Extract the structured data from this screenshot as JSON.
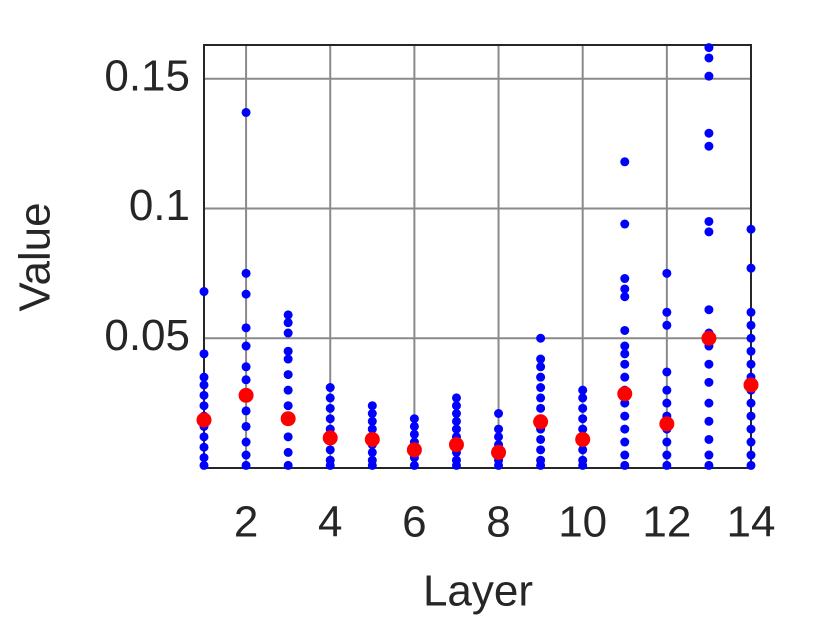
{
  "chart_data": {
    "type": "scatter",
    "xlabel": "Layer",
    "ylabel": "Value",
    "xlim": [
      1,
      14
    ],
    "ylim": [
      0,
      0.163
    ],
    "xticks": [
      2,
      4,
      6,
      8,
      10,
      12,
      14
    ],
    "yticks": [
      0.05,
      0.1,
      0.15
    ],
    "grid": true,
    "series": [
      {
        "color": "#0000ff",
        "x": [
          1,
          1,
          1,
          1,
          1,
          1,
          1,
          1,
          1,
          1,
          1,
          1,
          2,
          2,
          2,
          2,
          2,
          2,
          2,
          2,
          2,
          2,
          2,
          2,
          2,
          3,
          3,
          3,
          3,
          3,
          3,
          3,
          3,
          3,
          3,
          3,
          3,
          4,
          4,
          4,
          4,
          4,
          4,
          4,
          4,
          4,
          5,
          5,
          5,
          5,
          5,
          5,
          5,
          5,
          5,
          6,
          6,
          6,
          6,
          6,
          6,
          6,
          7,
          7,
          7,
          7,
          7,
          7,
          7,
          7,
          7,
          7,
          8,
          8,
          8,
          8,
          8,
          8,
          8,
          9,
          9,
          9,
          9,
          9,
          9,
          9,
          9,
          9,
          9,
          9,
          9,
          9,
          10,
          10,
          10,
          10,
          10,
          10,
          10,
          10,
          10,
          11,
          11,
          11,
          11,
          11,
          11,
          11,
          11,
          11,
          11,
          11,
          11,
          11,
          11,
          11,
          11,
          11,
          12,
          12,
          12,
          12,
          12,
          12,
          12,
          12,
          12,
          12,
          12,
          13,
          13,
          13,
          13,
          13,
          13,
          13,
          13,
          13,
          13,
          13,
          13,
          13,
          13,
          13,
          13,
          13,
          14,
          14,
          14,
          14,
          14,
          14,
          14,
          14,
          14,
          14,
          14,
          14,
          14,
          14,
          14
        ],
        "values": [
          0.068,
          0.044,
          0.035,
          0.032,
          0.028,
          0.024,
          0.02,
          0.016,
          0.012,
          0.008,
          0.004,
          0.001,
          0.137,
          0.075,
          0.067,
          0.054,
          0.047,
          0.039,
          0.034,
          0.028,
          0.022,
          0.016,
          0.01,
          0.005,
          0.001,
          0.059,
          0.056,
          0.052,
          0.045,
          0.042,
          0.036,
          0.03,
          0.024,
          0.018,
          0.012,
          0.006,
          0.001,
          0.031,
          0.027,
          0.023,
          0.019,
          0.015,
          0.011,
          0.007,
          0.003,
          0.001,
          0.024,
          0.021,
          0.018,
          0.015,
          0.012,
          0.009,
          0.006,
          0.003,
          0.001,
          0.019,
          0.016,
          0.013,
          0.01,
          0.007,
          0.004,
          0.001,
          0.027,
          0.024,
          0.021,
          0.018,
          0.015,
          0.012,
          0.009,
          0.006,
          0.003,
          0.001,
          0.021,
          0.015,
          0.012,
          0.009,
          0.006,
          0.003,
          0.001,
          0.05,
          0.042,
          0.039,
          0.035,
          0.031,
          0.027,
          0.023,
          0.019,
          0.015,
          0.011,
          0.007,
          0.003,
          0.001,
          0.03,
          0.027,
          0.023,
          0.019,
          0.015,
          0.011,
          0.007,
          0.003,
          0.001,
          0.118,
          0.094,
          0.073,
          0.069,
          0.066,
          0.053,
          0.047,
          0.044,
          0.04,
          0.035,
          0.03,
          0.025,
          0.02,
          0.015,
          0.01,
          0.005,
          0.001,
          0.075,
          0.06,
          0.055,
          0.037,
          0.03,
          0.025,
          0.02,
          0.015,
          0.01,
          0.005,
          0.001,
          0.162,
          0.158,
          0.151,
          0.129,
          0.124,
          0.095,
          0.091,
          0.061,
          0.052,
          0.047,
          0.04,
          0.033,
          0.025,
          0.018,
          0.011,
          0.005,
          0.001,
          0.092,
          0.077,
          0.06,
          0.055,
          0.05,
          0.045,
          0.04,
          0.035,
          0.03,
          0.025,
          0.02,
          0.015,
          0.01,
          0.005,
          0.001
        ]
      },
      {
        "color": "#ff0000",
        "x": [
          1,
          2,
          3,
          4,
          5,
          6,
          7,
          8,
          9,
          10,
          11,
          12,
          13,
          14
        ],
        "values": [
          0.0185,
          0.028,
          0.019,
          0.0116,
          0.011,
          0.007,
          0.009,
          0.006,
          0.0178,
          0.011,
          0.0286,
          0.017,
          0.05,
          0.032
        ]
      }
    ]
  }
}
